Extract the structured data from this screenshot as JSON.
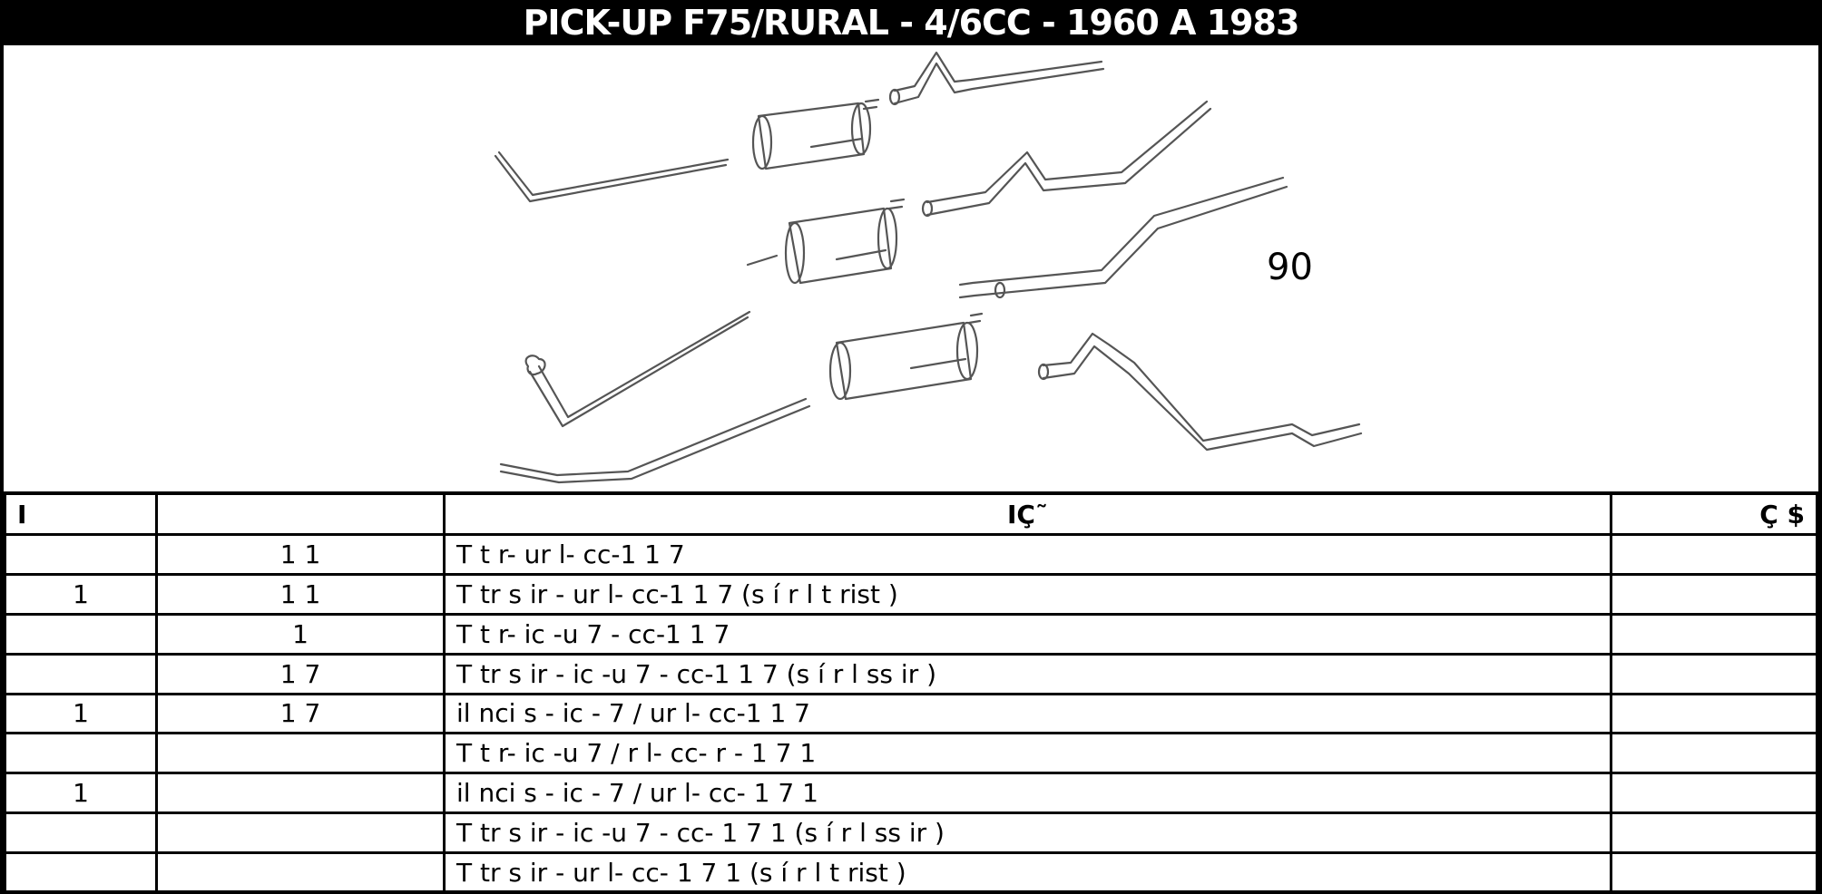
{
  "title": "PICK-UP F75/RURAL - 4/6CC - 1960 A 1983",
  "figure": {
    "ref_number": "90"
  },
  "table": {
    "headers": [
      "I",
      "",
      "IÇ˜",
      "Ç $"
    ],
    "rows": [
      {
        "item": "",
        "code": "1 1",
        "desc": "T            t r-  ur l-  cc-1        1 7",
        "price": ""
      },
      {
        "item": "1",
        "code": "1  1",
        "desc": "T    tr s ir  -  ur l-  cc-1       1 7  (s í        r  l              t rist )",
        "price": ""
      },
      {
        "item": "",
        "code": "1",
        "desc": "T            t r-  ic -u   7  - cc-1       1 7",
        "price": ""
      },
      {
        "item": "",
        "code": "1    7",
        "desc": "T    tr s ir  -  ic -u   7  - cc-1       1 7  (s í        r  l              ss    ir )",
        "price": ""
      },
      {
        "item": "1",
        "code": "1    7",
        "desc": "il nci s  -  ic -    7 /  ur l-  cc-1        1 7",
        "price": ""
      },
      {
        "item": "",
        "code": "",
        "desc": "T            t r-  ic -u   7 /   r l-  cc-          r  - 1 7    1",
        "price": ""
      },
      {
        "item": "1",
        "code": "",
        "desc": "il nci s  -  ic -    7 /  ur l-  cc- 1 7    1",
        "price": ""
      },
      {
        "item": "",
        "code": "",
        "desc": "T    tr s ir  -  ic -u   7  - cc- 1 7    1     (s í        r  l              ss    ir )",
        "price": ""
      },
      {
        "item": "",
        "code": "",
        "desc": "T    tr s ir  -  ur l-  cc- 1 7    1     (s í        r  l              t rist )",
        "price": ""
      }
    ]
  }
}
